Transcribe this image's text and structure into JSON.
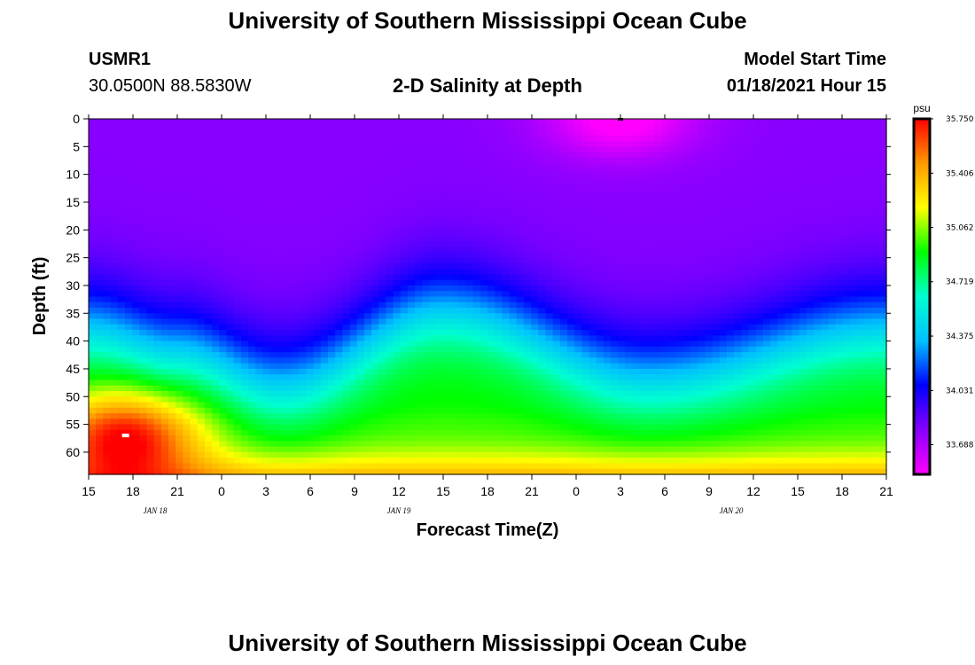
{
  "header": {
    "title": "University of Southern Mississippi Ocean Cube",
    "station_id": "USMR1",
    "coordinates": "30.0500N 88.5830W",
    "plot_title": "2-D Salinity at Depth",
    "model_start_label": "Model Start Time",
    "model_start_value": "01/18/2021 Hour 15"
  },
  "footer": {
    "title": "University of Southern Mississippi Ocean Cube"
  },
  "chart_data": {
    "type": "heatmap",
    "title": "2-D Salinity at Depth",
    "xlabel": "Forecast Time(Z)",
    "ylabel": "Depth (ft)",
    "x_range_hours": [
      0,
      54
    ],
    "y_range_ft": [
      0,
      64
    ],
    "x_tick_labels": [
      "15",
      "18",
      "21",
      "0",
      "3",
      "6",
      "9",
      "12",
      "15",
      "18",
      "21",
      "0",
      "3",
      "6",
      "9",
      "12",
      "15",
      "18",
      "21"
    ],
    "y_tick_labels": [
      "0",
      "5",
      "10",
      "15",
      "20",
      "25",
      "30",
      "35",
      "40",
      "45",
      "50",
      "55",
      "60"
    ],
    "date_labels": [
      {
        "text": "JAN 18",
        "hour": 4.5
      },
      {
        "text": "JAN 19",
        "hour": 21
      },
      {
        "text": "JAN 20",
        "hour": 43.5
      }
    ],
    "colorbar": {
      "unit": "psu",
      "min": 33.5,
      "max": 35.75,
      "labels": [
        "35.750",
        "35.406",
        "35.062",
        "34.719",
        "34.375",
        "34.031",
        "33.688"
      ],
      "label_values": [
        35.75,
        35.406,
        35.062,
        34.719,
        34.375,
        34.031,
        33.688
      ],
      "colors": [
        "#ff00ff",
        "#8800ff",
        "#0000ff",
        "#00c0ff",
        "#00ffd0",
        "#00ff00",
        "#ffff00",
        "#ff9900",
        "#ff0000"
      ]
    },
    "features": {
      "halocline_depth_ft": [
        {
          "hour": 0,
          "depth": 37
        },
        {
          "hour": 6,
          "depth": 41
        },
        {
          "hour": 13,
          "depth": 47
        },
        {
          "hour": 24,
          "depth": 34
        },
        {
          "hour": 38,
          "depth": 46
        },
        {
          "hour": 54,
          "depth": 37
        }
      ],
      "surface_min_hour": 36,
      "high_salinity_core": {
        "hour": 2.5,
        "depth": 57,
        "value": 35.75
      }
    }
  }
}
